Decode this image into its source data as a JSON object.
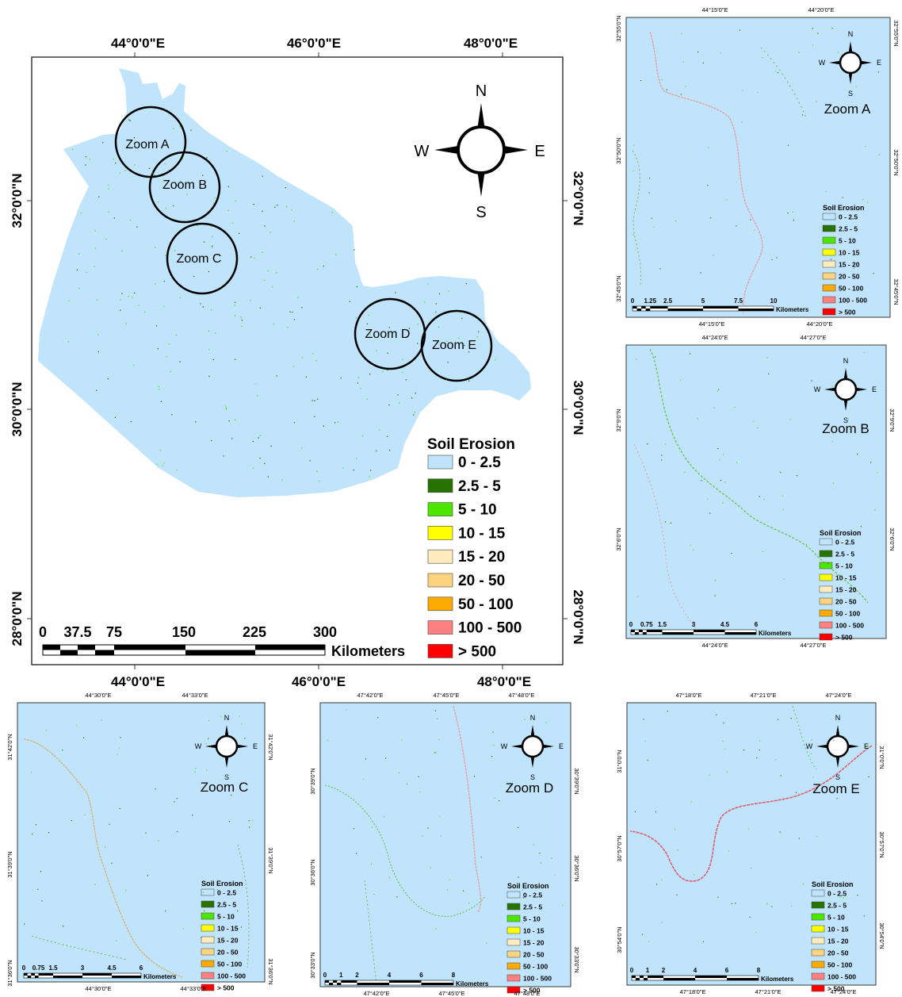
{
  "colors": {
    "water": "#bfe4fb",
    "frame": "#3a3a3a",
    "legend_classes": [
      "#bfe4fb",
      "#267300",
      "#4ce600",
      "#ffff00",
      "#ffebbe",
      "#fcd37f",
      "#ffaa00",
      "#ff8080",
      "#ff0000"
    ]
  },
  "main_map": {
    "top_ticks": [
      "44°0'0\"E",
      "46°0'0\"E",
      "48°0'0\"E"
    ],
    "bottom_ticks": [
      "44°0'0\"E",
      "46°0'0\"E",
      "48°0'0\"E"
    ],
    "left_ticks": [
      "32°0'0\"N",
      "30°0'0\"N",
      "28°0'0\"N"
    ],
    "right_ticks": [
      "32°0'0\"N",
      "30°0'0\"N",
      "28°0'0\"N"
    ],
    "compass": {
      "n": "N",
      "s": "S",
      "e": "E",
      "w": "W"
    },
    "zoom_circles": [
      "Zoom A",
      "Zoom B",
      "Zoom C",
      "Zoom D",
      "Zoom E"
    ],
    "legend_title": "Soil Erosion",
    "legend_labels": [
      "0 - 2.5",
      "2.5 - 5",
      "5 - 10",
      "10 - 15",
      "15 - 20",
      "20 - 50",
      "50 - 100",
      "100 - 500",
      "> 500"
    ],
    "scale_labels": [
      "0",
      "37.5",
      "75",
      "150",
      "225",
      "300"
    ],
    "scale_unit": "Kilometers"
  },
  "zoom_panels": [
    {
      "title": "Zoom A",
      "top_ticks": [
        "44°15'0\"E",
        "44°20'0\"E"
      ],
      "bottom_ticks": [
        "44°15'0\"E",
        "44°20'0\"E"
      ],
      "left_ticks": [
        "32°55'0\"N",
        "32°50'0\"N",
        "32°45'0\"N"
      ],
      "right_ticks": [
        "32°55'0\"N",
        "32°50'0\"N",
        "32°45'0\"N"
      ],
      "scale_labels": [
        "0",
        "1.25",
        "2.5",
        "5",
        "7.5",
        "10"
      ],
      "scale_unit": "Kilometers"
    },
    {
      "title": "Zoom B",
      "top_ticks": [
        "44°24'0\"E",
        "44°27'0\"E"
      ],
      "bottom_ticks": [
        "44°24'0\"E",
        "44°27'0\"E"
      ],
      "left_ticks": [
        "32°9'0\"N",
        "32°6'0\"N"
      ],
      "right_ticks": [
        "32°9'0\"N",
        "32°6'0\"N"
      ],
      "scale_labels": [
        "0",
        "0.75",
        "1.5",
        "3",
        "4.5",
        "6"
      ],
      "scale_unit": "Kilometers"
    },
    {
      "title": "Zoom C",
      "top_ticks": [
        "44°30'0\"E",
        "44°33'0\"E"
      ],
      "bottom_ticks": [
        "44°30'0\"E",
        "44°33'0\"E"
      ],
      "left_ticks": [
        "31°42'0\"N",
        "31°39'0\"N",
        "31°36'0\"N"
      ],
      "right_ticks": [
        "31°42'0\"N",
        "31°39'0\"N",
        "31°36'0\"N"
      ],
      "scale_labels": [
        "0",
        "0.75",
        "1.5",
        "3",
        "4.5",
        "6"
      ],
      "scale_unit": "Kilometers"
    },
    {
      "title": "Zoom D",
      "top_ticks": [
        "47°42'0\"E",
        "47°45'0\"E",
        "47°48'0\"E"
      ],
      "bottom_ticks": [
        "47°42'0\"E",
        "47°45'0\"E",
        "47°48'0\"E"
      ],
      "left_ticks": [
        "30°39'0\"N",
        "30°36'0\"N",
        "30°33'0\"N"
      ],
      "right_ticks": [
        "30°39'0\"N",
        "30°36'0\"N",
        "30°33'0\"N"
      ],
      "scale_labels": [
        "0",
        "1",
        "2",
        "4",
        "6",
        "8"
      ],
      "scale_unit": "Kilometers"
    },
    {
      "title": "Zoom E",
      "top_ticks": [
        "47°18'0\"E",
        "47°21'0\"E",
        "47°24'0\"E"
      ],
      "bottom_ticks": [
        "47°18'0\"E",
        "47°21'0\"E",
        "47°24'0\"E"
      ],
      "left_ticks": [
        "31°0'0\"N",
        "30°57'0\"N",
        "30°54'0\"N"
      ],
      "right_ticks": [
        "31°0'0\"N",
        "30°57'0\"N",
        "30°54'0\"N"
      ],
      "scale_labels": [
        "0",
        "1",
        "2",
        "4",
        "6",
        "8"
      ],
      "scale_unit": "Kilometers"
    }
  ]
}
